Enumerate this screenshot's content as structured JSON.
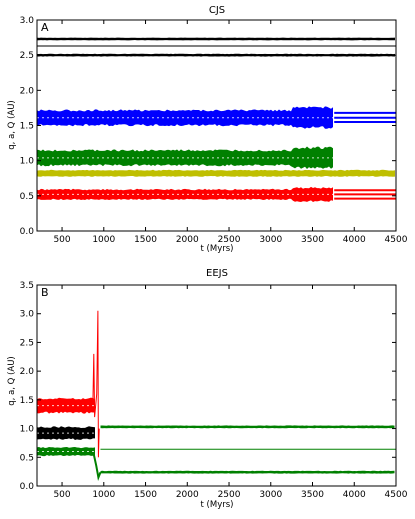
{
  "chart_data": [
    {
      "type": "line",
      "title": "CJS",
      "panel_label": "A",
      "xlabel": "t (Myrs)",
      "ylabel": "q, a, Q (AU)",
      "xlim": [
        200,
        4500
      ],
      "ylim": [
        0.0,
        3.0
      ],
      "xticks": [
        500,
        1000,
        1500,
        2000,
        2500,
        3000,
        3500,
        4000,
        4500
      ],
      "yticks": [
        0.0,
        0.5,
        1.0,
        1.5,
        2.0,
        2.5,
        3.0
      ],
      "grid": false,
      "series": [
        {
          "color": "#000000",
          "kind": "band",
          "x_end": 4500,
          "center": 2.73,
          "half_width": 0.02
        },
        {
          "color": "#000000",
          "kind": "line",
          "x_end": 4500,
          "value": 2.63
        },
        {
          "color": "#000000",
          "kind": "band",
          "x_end": 4500,
          "center": 2.5,
          "half_width": 0.02
        },
        {
          "color": "#0000ff",
          "kind": "band",
          "x_end": 3760,
          "center": 1.61,
          "half_width": 0.12,
          "after": [
            1.68,
            1.61,
            1.55
          ]
        },
        {
          "color": "#008000",
          "kind": "band",
          "x_end": 3760,
          "center": 1.04,
          "half_width": 0.12
        },
        {
          "color": "#bfbf00",
          "kind": "band",
          "x_end": 4500,
          "center": 0.82,
          "half_width": 0.05
        },
        {
          "color": "#ff0000",
          "kind": "band",
          "x_end": 3760,
          "center": 0.52,
          "half_width": 0.08,
          "after": [
            0.58,
            0.52,
            0.46
          ]
        }
      ]
    },
    {
      "type": "line",
      "title": "EEJS",
      "panel_label": "B",
      "xlabel": "t (Myrs)",
      "ylabel": "q, a, Q (AU)",
      "xlim": [
        200,
        4500
      ],
      "ylim": [
        0.0,
        3.5
      ],
      "xticks": [
        500,
        1000,
        1500,
        2000,
        2500,
        3000,
        3500,
        4000,
        4500
      ],
      "yticks": [
        0.0,
        0.5,
        1.0,
        1.5,
        2.0,
        2.5,
        3.0,
        3.5
      ],
      "grid": false,
      "series": [
        {
          "color": "#ff0000",
          "kind": "band",
          "x_end": 900,
          "center": 1.4,
          "half_width": 0.14
        },
        {
          "color": "#000000",
          "kind": "band",
          "x_end": 900,
          "center": 0.92,
          "half_width": 0.12
        },
        {
          "color": "#008000",
          "kind": "band",
          "x_end": 900,
          "center": 0.6,
          "half_width": 0.08
        },
        {
          "color": "#008000",
          "kind": "band",
          "x_start": 960,
          "x_end": 4500,
          "center": 1.03,
          "half_width": 0.025
        },
        {
          "color": "#008000",
          "kind": "line",
          "x_start": 960,
          "x_end": 4500,
          "value": 0.64
        },
        {
          "color": "#008000",
          "kind": "band",
          "x_start": 960,
          "x_end": 4500,
          "center": 0.24,
          "half_width": 0.025
        }
      ]
    }
  ]
}
